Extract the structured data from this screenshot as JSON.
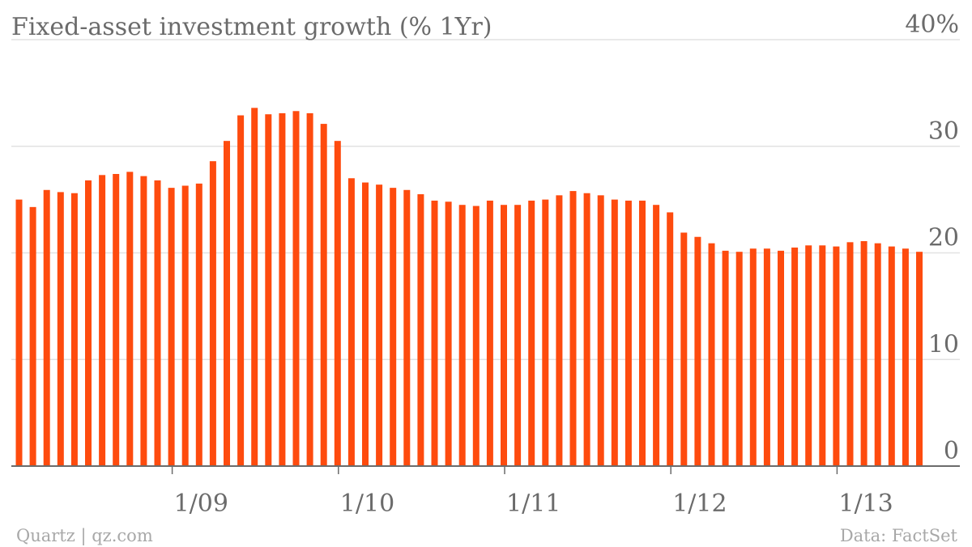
{
  "colors": {
    "bar": "#fe4b0e",
    "text": "#6b6b6b",
    "footer": "#a8a8a8",
    "grid": "#e2e2e2"
  },
  "chart_data": {
    "type": "bar",
    "title": "Fixed-asset investment growth (% 1Yr)",
    "unit_label": "40%",
    "ylim": [
      0,
      40
    ],
    "yticks": [
      {
        "value": 0,
        "label": "0"
      },
      {
        "value": 10,
        "label": "10"
      },
      {
        "value": 20,
        "label": "20"
      },
      {
        "value": 30,
        "label": "30"
      },
      {
        "value": 40,
        "label": "40%"
      }
    ],
    "x_ticks": [
      {
        "index": 11,
        "label": "1/09"
      },
      {
        "index": 23,
        "label": "1/10"
      },
      {
        "index": 35,
        "label": "1/11"
      },
      {
        "index": 47,
        "label": "1/12"
      },
      {
        "index": 59,
        "label": "1/13"
      }
    ],
    "values": [
      25.0,
      24.3,
      25.9,
      25.7,
      25.6,
      26.8,
      27.3,
      27.4,
      27.6,
      27.2,
      26.8,
      26.1,
      26.3,
      26.5,
      28.6,
      30.5,
      32.9,
      33.6,
      33.0,
      33.1,
      33.3,
      33.1,
      32.1,
      30.5,
      27.0,
      26.6,
      26.4,
      26.1,
      25.9,
      25.5,
      24.9,
      24.8,
      24.5,
      24.4,
      24.9,
      24.5,
      24.5,
      24.9,
      25.0,
      25.4,
      25.8,
      25.6,
      25.4,
      25.0,
      24.9,
      24.9,
      24.5,
      23.8,
      21.9,
      21.5,
      20.9,
      20.2,
      20.1,
      20.4,
      20.4,
      20.2,
      20.5,
      20.7,
      20.7,
      20.6,
      21.0,
      21.1,
      20.9,
      20.6,
      20.4,
      20.1
    ],
    "grid": true,
    "legend": "none"
  },
  "footer": {
    "left": "Quartz | qz.com",
    "right": "Data: FactSet"
  }
}
